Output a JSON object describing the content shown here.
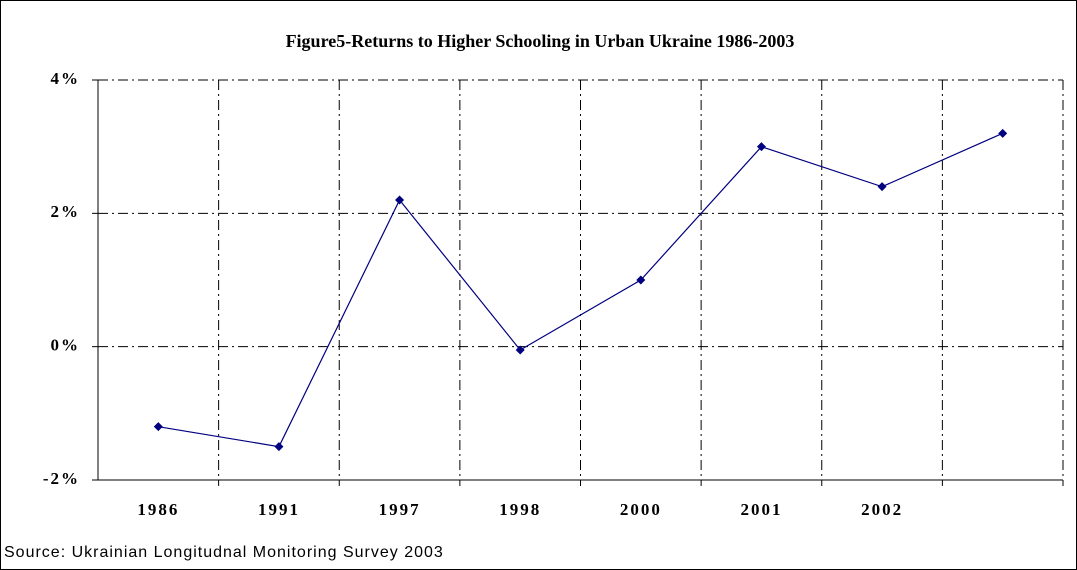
{
  "chart_data": {
    "type": "line",
    "title": "Figure5-Returns to Higher Schooling in Urban Ukraine 1986-2003",
    "source": "Source: Ukrainian Longitudnal Monitoring Survey 2003",
    "categories": [
      "1986",
      "1991",
      "1997",
      "1998",
      "2000",
      "2001",
      "2002",
      null
    ],
    "series": [
      {
        "color": "#000080",
        "values": [
          -1.2,
          -1.5,
          2.2,
          -0.05,
          1.0,
          3.0,
          2.4,
          3.2
        ]
      }
    ],
    "ylim": [
      -2,
      4
    ],
    "yticks": [
      {
        "value": -2,
        "label": "-2%"
      },
      {
        "value": 0,
        "label": "0%"
      },
      {
        "value": 2,
        "label": "2%"
      },
      {
        "value": 4,
        "label": "4%"
      }
    ],
    "grid": true
  }
}
